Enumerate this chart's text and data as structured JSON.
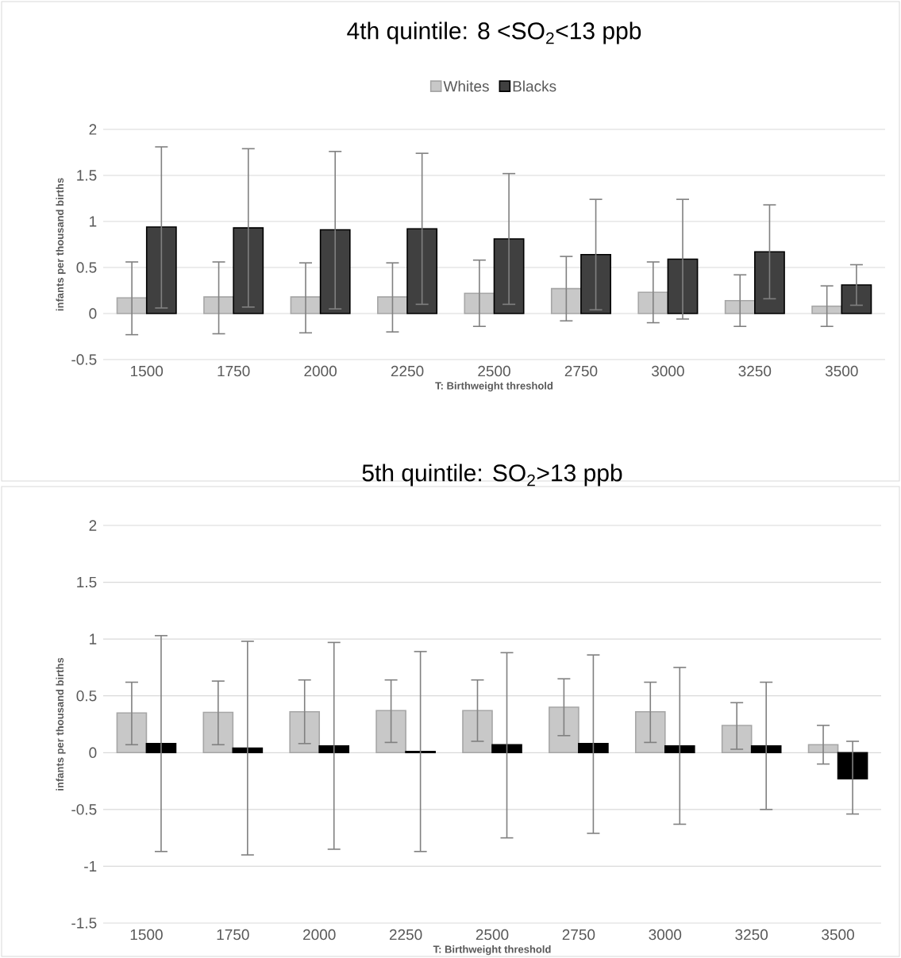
{
  "chart_data": [
    {
      "type": "bar",
      "title": "4th quintile: 8 <SO$_{2}$<13 ppb",
      "xlabel": "T:  Birthweight threshold",
      "ylabel": "infants  per thousand births",
      "categories": [
        "1500",
        "1750",
        "2000",
        "2250",
        "2500",
        "2750",
        "3000",
        "3250",
        "3500"
      ],
      "series": [
        {
          "name": "Whites",
          "color": "#c8c8c8",
          "values": [
            0.17,
            0.18,
            0.18,
            0.18,
            0.22,
            0.27,
            0.23,
            0.14,
            0.08
          ],
          "errors": [
            [
              -0.23,
              0.56
            ],
            [
              -0.22,
              0.56
            ],
            [
              -0.21,
              0.55
            ],
            [
              -0.2,
              0.55
            ],
            [
              -0.14,
              0.58
            ],
            [
              -0.08,
              0.62
            ],
            [
              -0.1,
              0.56
            ],
            [
              -0.14,
              0.42
            ],
            [
              -0.14,
              0.3
            ]
          ]
        },
        {
          "name": "Blacks",
          "color": "#404040",
          "values": [
            0.94,
            0.93,
            0.91,
            0.92,
            0.81,
            0.64,
            0.59,
            0.67,
            0.31
          ],
          "errors": [
            [
              0.06,
              1.81
            ],
            [
              0.07,
              1.79
            ],
            [
              0.05,
              1.76
            ],
            [
              0.1,
              1.74
            ],
            [
              0.1,
              1.52
            ],
            [
              0.04,
              1.24
            ],
            [
              -0.06,
              1.24
            ],
            [
              0.16,
              1.18
            ],
            [
              0.09,
              0.53
            ]
          ]
        }
      ],
      "ylim": [
        -0.5,
        2
      ],
      "yticks": [
        -0.5,
        0,
        0.5,
        1,
        1.5,
        2
      ],
      "grid": "y",
      "legend": "top"
    },
    {
      "type": "bar",
      "title": "5th quintile: SO$_{2}$>13 ppb",
      "xlabel": "T:  Birthweight threshold",
      "ylabel": "infants  per thousand births",
      "categories": [
        "1500",
        "1750",
        "2000",
        "2250",
        "2500",
        "2750",
        "3000",
        "3250",
        "3500"
      ],
      "series": [
        {
          "color": "#c8c8c8",
          "values": [
            0.35,
            0.355,
            0.36,
            0.37,
            0.37,
            0.4,
            0.36,
            0.24,
            0.07
          ],
          "errors": [
            [
              0.07,
              0.62
            ],
            [
              0.07,
              0.63
            ],
            [
              0.08,
              0.64
            ],
            [
              0.09,
              0.64
            ],
            [
              0.1,
              0.64
            ],
            [
              0.15,
              0.65
            ],
            [
              0.09,
              0.62
            ],
            [
              0.03,
              0.44
            ],
            [
              -0.1,
              0.24
            ]
          ]
        },
        {
          "color": "#000000",
          "values": [
            0.08,
            0.04,
            0.06,
            0.01,
            0.07,
            0.08,
            0.06,
            0.06,
            -0.23
          ],
          "errors": [
            [
              -0.87,
              1.03
            ],
            [
              -0.9,
              0.98
            ],
            [
              -0.85,
              0.97
            ],
            [
              -0.87,
              0.89
            ],
            [
              -0.75,
              0.88
            ],
            [
              -0.71,
              0.86
            ],
            [
              -0.63,
              0.75
            ],
            [
              -0.5,
              0.62
            ],
            [
              -0.54,
              0.1
            ]
          ]
        }
      ],
      "ylim": [
        -1.5,
        2
      ],
      "yticks": [
        -1.5,
        -1,
        -0.5,
        0,
        0.5,
        1,
        1.5,
        2
      ],
      "grid": "y",
      "legend": false
    }
  ]
}
